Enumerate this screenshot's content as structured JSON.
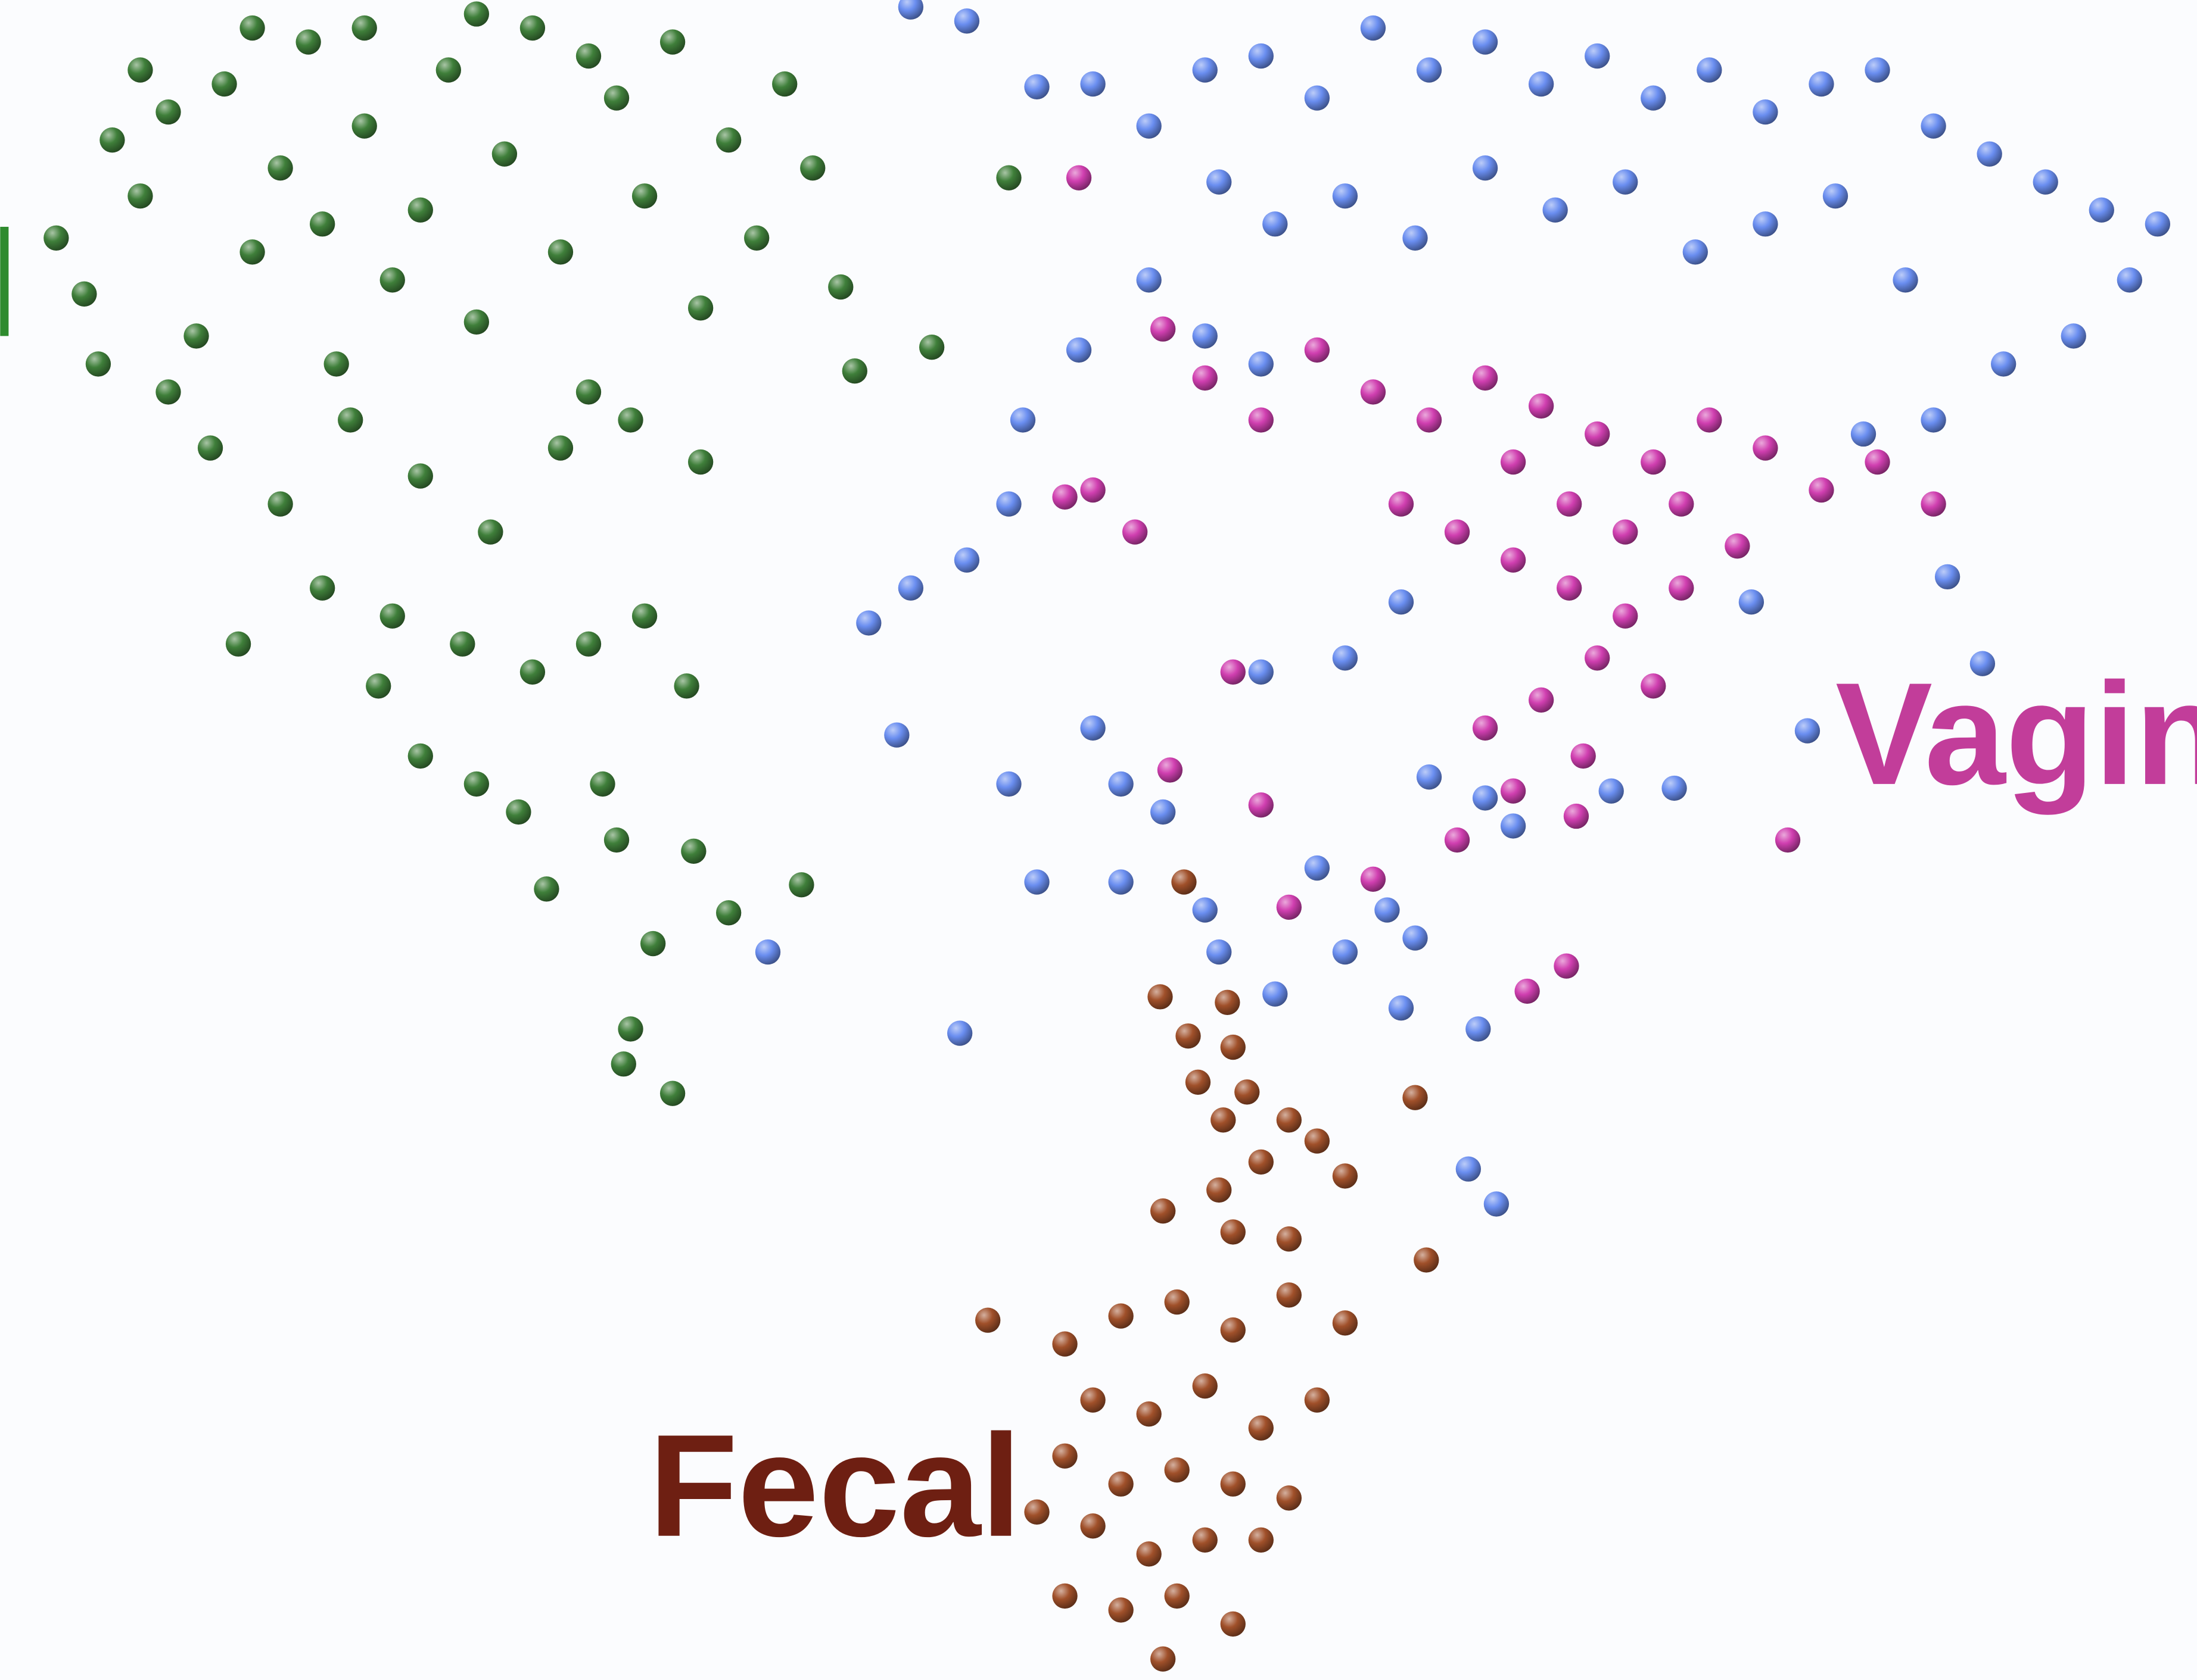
{
  "chart_data": {
    "type": "scatter",
    "xlim": [
      0,
      1568
    ],
    "ylim": [
      1200,
      0
    ],
    "series": [
      {
        "color": "#3f7f3a",
        "x": [
          40,
          60,
          80,
          100,
          120,
          140,
          160,
          180,
          200,
          220,
          240,
          260,
          280,
          300,
          320,
          340,
          360,
          380,
          400,
          420,
          440,
          460,
          480,
          500,
          520,
          540,
          560,
          580,
          150,
          200,
          250,
          300,
          350,
          400,
          450,
          500,
          120,
          180,
          260,
          340,
          420,
          100,
          70,
          230,
          280,
          330,
          380,
          420,
          460,
          490,
          170,
          270,
          300,
          340,
          370,
          430,
          440,
          390,
          495,
          520,
          572,
          466,
          450,
          445,
          480,
          600,
          610,
          665,
          720,
          230
        ],
        "y": [
          170,
          210,
          100,
          140,
          80,
          240,
          60,
          180,
          120,
          30,
          260,
          90,
          200,
          150,
          50,
          230,
          110,
          20,
          180,
          280,
          70,
          140,
          30,
          220,
          100,
          170,
          60,
          120,
          320,
          360,
          300,
          340,
          380,
          320,
          300,
          330,
          280,
          20,
          20,
          10,
          40,
          50,
          260,
          420,
          440,
          460,
          480,
          460,
          440,
          490,
          460,
          490,
          540,
          560,
          580,
          560,
          600,
          635,
          608,
          652,
          632,
          674,
          735,
          760,
          781,
          205,
          265,
          248,
          127,
          160
        ]
      },
      {
        "color": "#6a8ef0",
        "x": [
          650,
          690,
          740,
          780,
          820,
          860,
          900,
          940,
          980,
          1020,
          1060,
          1100,
          1140,
          1180,
          1220,
          1260,
          1300,
          1340,
          1380,
          1420,
          1460,
          1500,
          1540,
          1520,
          1480,
          1430,
          1380,
          1330,
          870,
          910,
          960,
          1010,
          1060,
          1110,
          1160,
          1210,
          1260,
          1310,
          1360,
          820,
          860,
          900,
          770,
          730,
          720,
          690,
          650,
          620,
          640,
          780,
          800,
          830,
          720,
          740,
          800,
          860,
          870,
          910,
          960,
          990,
          1010,
          1000,
          1055,
          1048,
          1068,
          940,
          1020,
          1060,
          1080,
          1150,
          1195,
          1290,
          1390,
          1415,
          1250,
          1000,
          960,
          900,
          685,
          548
        ],
        "y": [
          5,
          15,
          62,
          60,
          90,
          50,
          40,
          70,
          20,
          50,
          30,
          60,
          40,
          70,
          50,
          80,
          60,
          50,
          90,
          110,
          130,
          150,
          160,
          200,
          240,
          260,
          300,
          310,
          130,
          160,
          140,
          170,
          120,
          150,
          130,
          180,
          160,
          140,
          200,
          200,
          240,
          260,
          250,
          300,
          360,
          400,
          420,
          445,
          525,
          520,
          560,
          580,
          560,
          630,
          630,
          650,
          680,
          710,
          680,
          650,
          670,
          720,
          735,
          835,
          860,
          620,
          555,
          570,
          590,
          565,
          563,
          522,
          412,
          474,
          430,
          430,
          470,
          480,
          738,
          680
        ]
      },
      {
        "color": "#d03fb0",
        "x": [
          770,
          830,
          860,
          900,
          940,
          980,
          1020,
          1060,
          1100,
          1140,
          1180,
          1220,
          1260,
          1300,
          1340,
          1380,
          1080,
          1120,
          1160,
          1200,
          1240,
          1000,
          1040,
          1080,
          1120,
          1160,
          1200,
          1140,
          1180,
          1100,
          1060,
          1130,
          1080,
          1040,
          1276,
          1125,
          835,
          810,
          780,
          760,
          880,
          900,
          920,
          980,
          1090,
          1118
        ],
        "y": [
          127,
          235,
          270,
          300,
          250,
          280,
          300,
          270,
          290,
          310,
          330,
          300,
          320,
          350,
          330,
          360,
          330,
          360,
          380,
          360,
          390,
          360,
          380,
          400,
          420,
          440,
          420,
          470,
          490,
          500,
          520,
          540,
          565,
          600,
          600,
          583,
          550,
          380,
          350,
          355,
          480,
          575,
          648,
          628,
          708,
          690
        ]
      },
      {
        "color": "#a0502a",
        "x": [
          845,
          828,
          876,
          848,
          880,
          855,
          890,
          873,
          920,
          1010,
          900,
          940,
          870,
          960,
          830,
          880,
          920,
          1018,
          705,
          760,
          800,
          840,
          880,
          920,
          960,
          780,
          820,
          860,
          900,
          940,
          760,
          800,
          840,
          880,
          920,
          780,
          820,
          860,
          900,
          760,
          800,
          840,
          880,
          830,
          740
        ],
        "y": [
          630,
          712,
          716,
          740,
          748,
          773,
          780,
          800,
          800,
          784,
          830,
          815,
          850,
          840,
          865,
          880,
          885,
          900,
          943,
          960,
          940,
          930,
          950,
          925,
          945,
          1000,
          1010,
          990,
          1020,
          1000,
          1040,
          1060,
          1050,
          1060,
          1070,
          1090,
          1110,
          1100,
          1100,
          1140,
          1150,
          1140,
          1160,
          1185,
          1080
        ]
      }
    ],
    "annotations": [
      {
        "text": "Vagina",
        "color": "#c23d9a"
      },
      {
        "text": "Fecal",
        "color": "#6e1f12"
      }
    ]
  }
}
